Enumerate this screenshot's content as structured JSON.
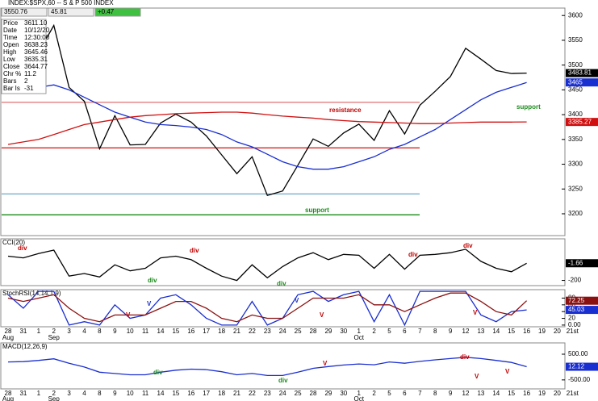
{
  "header": {
    "title": "INDEX:$SPX,60 -- S & P 500 INDEX",
    "toolbar": [
      "3550.76",
      "45.81",
      "+0.47"
    ],
    "info": [
      [
        "Price",
        "3611.10"
      ],
      [
        "Date",
        "10/12/20"
      ],
      [
        "Time",
        "12:30:00"
      ],
      [
        "Open",
        "3638.23"
      ],
      [
        "High",
        "3645.46"
      ],
      [
        "Low",
        "3635.31"
      ],
      [
        "Close",
        "3644.77"
      ],
      [
        "Chr %",
        "11.2"
      ],
      [
        "Bars",
        "2"
      ],
      [
        "Bar Is",
        "-31"
      ]
    ]
  },
  "chart_data": [
    {
      "type": "line",
      "categories": [
        "28",
        "31",
        "1",
        "2",
        "3",
        "4",
        "8",
        "9",
        "10",
        "11",
        "14",
        "15",
        "16",
        "17",
        "18",
        "21",
        "22",
        "23",
        "24",
        "25",
        "28",
        "29",
        "30",
        "1",
        "2",
        "5",
        "6",
        "7",
        "8",
        "9",
        "12",
        "13",
        "14",
        "15",
        "16",
        "19",
        "20",
        "21st"
      ],
      "months": [
        "Aug",
        "Sep",
        "Oct"
      ],
      "ylim": [
        3156,
        3615
      ],
      "yticks": [
        3200,
        3250,
        3300,
        3350,
        3400,
        3450,
        3500,
        3550,
        3600
      ],
      "series": [
        {
          "color": "#000000",
          "values": [
            3508,
            3500,
            3526,
            3580,
            3455,
            3427,
            3331,
            3398,
            3339,
            3340,
            3383,
            3401,
            3385,
            3357,
            3319,
            3281,
            3315,
            3237,
            3246,
            3298,
            3351,
            3336,
            3363,
            3381,
            3348,
            3408,
            3361,
            3419,
            3447,
            3477,
            3534,
            3512,
            3489,
            3483,
            3483.81,
            null,
            null,
            null
          ]
        },
        {
          "color": "#1a2fd0",
          "values": [
            3470,
            3460,
            3455,
            3460,
            3450,
            3435,
            3420,
            3405,
            3395,
            3385,
            3380,
            3378,
            3375,
            3370,
            3360,
            3345,
            3335,
            3320,
            3305,
            3295,
            3290,
            3290,
            3295,
            3305,
            3315,
            3330,
            3340,
            3355,
            3370,
            3390,
            3410,
            3430,
            3445,
            3455,
            3465,
            null,
            null,
            null
          ]
        },
        {
          "color": "#d01010",
          "values": [
            3340,
            3345,
            3350,
            3360,
            3370,
            3380,
            3385,
            3390,
            3395,
            3398,
            3400,
            3402,
            3403,
            3404,
            3405,
            3405,
            3403,
            3400,
            3397,
            3395,
            3393,
            3390,
            3388,
            3386,
            3385,
            3384,
            3383,
            3382,
            3382,
            3383,
            3384,
            3385,
            3385,
            3385,
            3385.27,
            null,
            null,
            null
          ]
        }
      ],
      "hlines": [
        {
          "value": 3333,
          "color": "#d01010"
        },
        {
          "value": 3425,
          "color": "#e07070"
        },
        {
          "value": 3240,
          "color": "#6fa8c8"
        },
        {
          "value": 3198,
          "color": "#1a8a1a"
        }
      ],
      "annotations": [
        "resistance",
        "support",
        "support"
      ]
    },
    {
      "type": "line",
      "title": "CCI(20)",
      "ylim": [
        -260,
        280
      ],
      "yticks": [
        -200
      ],
      "series": [
        {
          "color": "#000000",
          "values": [
            80,
            60,
            110,
            150,
            -150,
            -120,
            -160,
            -20,
            -90,
            -60,
            60,
            80,
            40,
            -60,
            -150,
            -200,
            -20,
            -170,
            -40,
            60,
            120,
            40,
            100,
            90,
            -60,
            100,
            -70,
            90,
            100,
            120,
            160,
            20,
            -60,
            -100,
            -1.66,
            null,
            null,
            null
          ]
        }
      ],
      "annotations": [
        "div",
        "div",
        "div",
        "div",
        "div",
        "div"
      ]
    },
    {
      "type": "line",
      "title": "StochRSI(14,14,1,9)",
      "ylim": [
        -5,
        105
      ],
      "yticks": [
        {
          "value": 0,
          "label": "0.00"
        },
        20,
        40,
        60,
        80
      ],
      "series": [
        {
          "color": "#1a2fd0",
          "values": [
            90,
            50,
            100,
            100,
            0,
            10,
            0,
            60,
            20,
            30,
            80,
            90,
            60,
            20,
            0,
            0,
            70,
            0,
            20,
            90,
            100,
            70,
            90,
            100,
            10,
            90,
            0,
            100,
            100,
            100,
            100,
            30,
            10,
            40,
            45.03,
            null,
            null,
            null
          ]
        },
        {
          "color": "#8b1010",
          "values": [
            80,
            70,
            80,
            90,
            50,
            20,
            10,
            30,
            30,
            30,
            50,
            70,
            70,
            50,
            20,
            10,
            30,
            20,
            20,
            50,
            80,
            80,
            80,
            90,
            60,
            60,
            40,
            60,
            80,
            95,
            95,
            70,
            40,
            30,
            72.25,
            null,
            null,
            null
          ]
        }
      ],
      "annotations": [
        "V",
        "V",
        "V",
        "V",
        "V"
      ]
    },
    {
      "type": "line",
      "title": "MACD(12,26,9)",
      "ylim": [
        -850,
        940
      ],
      "yticks": [
        {
          "value": 500,
          "label": "500.00"
        },
        {
          "value": -500,
          "label": "-500.00"
        }
      ],
      "series": [
        {
          "color": "#1a2fd0",
          "values": [
            200,
            210,
            260,
            320,
            150,
            0,
            -200,
            -250,
            -300,
            -300,
            -200,
            -120,
            -80,
            -100,
            -180,
            -300,
            -250,
            -330,
            -330,
            -200,
            -50,
            20,
            80,
            120,
            90,
            200,
            150,
            220,
            280,
            330,
            380,
            330,
            260,
            180,
            12.12,
            null,
            null,
            null
          ]
        }
      ],
      "annotations": [
        "div",
        "div",
        "V",
        "V",
        "div",
        "V"
      ]
    }
  ]
}
